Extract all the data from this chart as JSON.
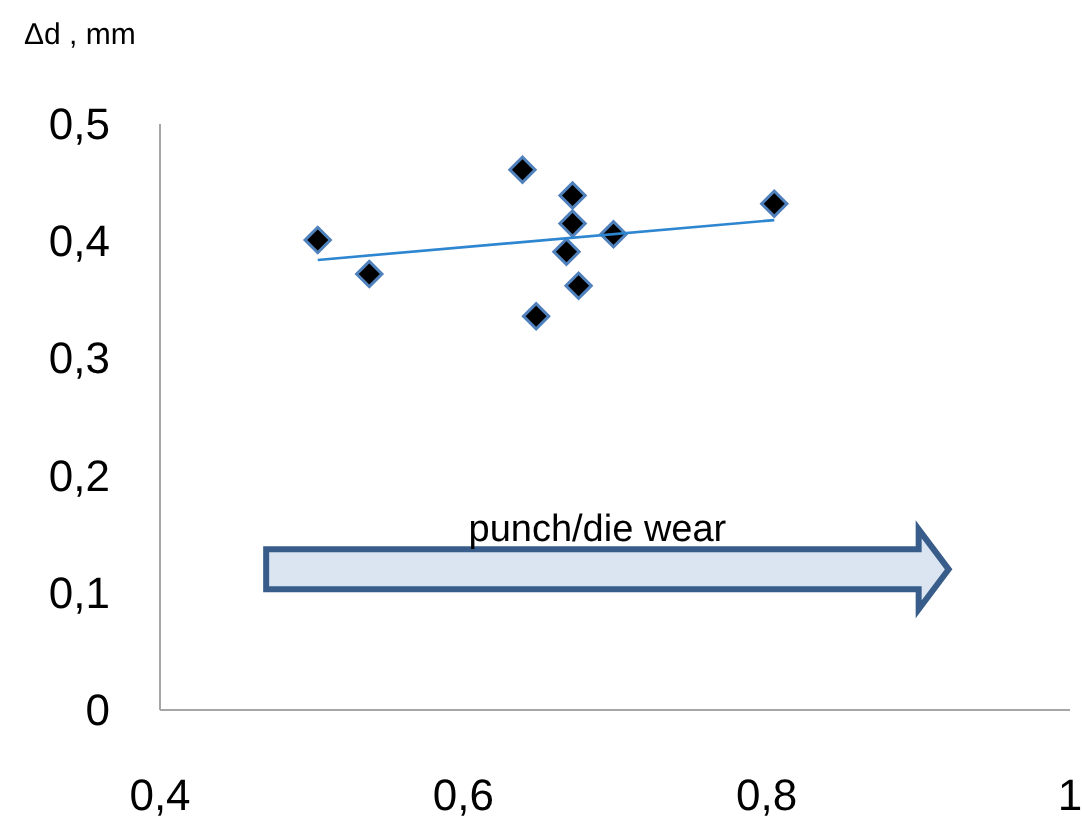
{
  "chart_data": {
    "type": "scatter",
    "ylabel": "Δd , mm",
    "xlim": [
      0.4,
      1
    ],
    "xticks": [
      {
        "value": 0.4,
        "label": "0,4"
      },
      {
        "value": 0.6,
        "label": "0,6"
      },
      {
        "value": 0.8,
        "label": "0,8"
      },
      {
        "value": 1,
        "label": "1"
      }
    ],
    "ylim": [
      0,
      0.5
    ],
    "yticks": [
      {
        "value": 0,
        "label": "0"
      },
      {
        "value": 0.1,
        "label": "0,1"
      },
      {
        "value": 0.2,
        "label": "0,2"
      },
      {
        "value": 0.3,
        "label": "0,3"
      },
      {
        "value": 0.4,
        "label": "0,4"
      },
      {
        "value": 0.5,
        "label": "0,5"
      }
    ],
    "grid": false,
    "annotations": [
      "punch/die  wear"
    ],
    "series": [
      {
        "color": "#000000",
        "marker": "diamond",
        "x": [
          0.504,
          0.538,
          0.639,
          0.648,
          0.668,
          0.672,
          0.672,
          0.676,
          0.699,
          0.805
        ],
        "values": [
          0.401,
          0.372,
          0.461,
          0.336,
          0.391,
          0.439,
          0.415,
          0.362,
          0.406,
          0.432
        ]
      },
      {
        "type": "line",
        "color": "#2e86d0",
        "marker": "none",
        "x": [
          0.504,
          0.805
        ],
        "values": [
          0.384,
          0.418
        ]
      }
    ]
  }
}
